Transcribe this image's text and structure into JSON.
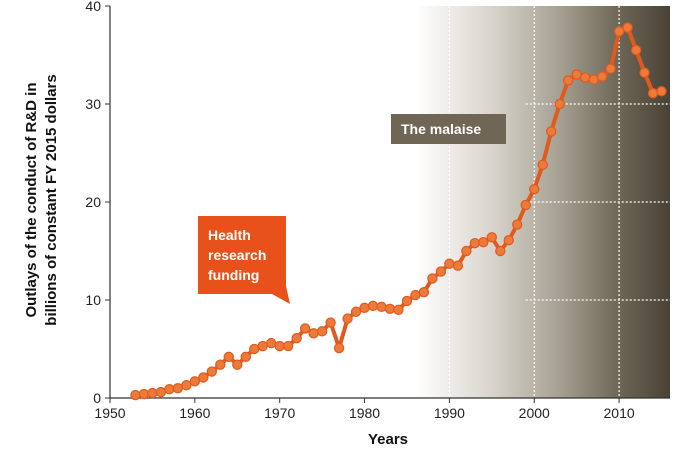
{
  "chart_data": {
    "type": "line",
    "xlabel": "Years",
    "ylabel_lines": [
      "Outlays of the conduct of R&D in",
      "billions of constant FY 2015 dollars"
    ],
    "xlim": [
      1950,
      2016
    ],
    "ylim": [
      0,
      40
    ],
    "x_ticks": [
      1950,
      1960,
      1970,
      1980,
      1990,
      2000,
      2010
    ],
    "y_ticks": [
      0,
      10,
      20,
      30,
      40
    ],
    "vertical_gridlines": [
      1990,
      2000,
      2010
    ],
    "horizontal_gridlines_shaded_region": [
      10,
      20,
      30
    ],
    "grid": "dotted white lines over shaded region",
    "shaded_region": {
      "start": 1986,
      "end": 2016,
      "color_from": "#ffffff",
      "color_to": "#4a4235"
    },
    "colors": {
      "series": "#e05a1e",
      "callout_health": "#e8521a",
      "callout_malaise": "#6f6655",
      "marker_fill": "#ec7a3a"
    },
    "series": [
      {
        "x": [
          1953,
          1954,
          1955,
          1956,
          1957,
          1958,
          1959,
          1960,
          1961,
          1962,
          1963,
          1964,
          1965,
          1966,
          1967,
          1968,
          1969,
          1970,
          1971,
          1972,
          1973,
          1974,
          1975,
          1976,
          1977,
          1978,
          1979,
          1980,
          1981,
          1982,
          1983,
          1984,
          1985,
          1986,
          1987,
          1988,
          1989,
          1990,
          1991,
          1992,
          1993,
          1994,
          1995,
          1996,
          1997,
          1998,
          1999,
          2000,
          2001,
          2002,
          2003,
          2004,
          2005,
          2006,
          2007,
          2008,
          2009,
          2010,
          2011,
          2012,
          2013,
          2014,
          2015
        ],
        "values": [
          0.3,
          0.4,
          0.5,
          0.6,
          0.9,
          1.0,
          1.3,
          1.7,
          2.1,
          2.7,
          3.4,
          4.2,
          3.4,
          4.2,
          5.0,
          5.3,
          5.6,
          5.3,
          5.3,
          6.1,
          7.1,
          6.6,
          6.8,
          7.7,
          5.1,
          8.1,
          8.8,
          9.2,
          9.4,
          9.3,
          9.1,
          9.0,
          9.9,
          10.5,
          10.8,
          12.2,
          12.9,
          13.7,
          13.5,
          15.0,
          15.8,
          15.9,
          16.4,
          15.0,
          16.1,
          17.7,
          19.7,
          21.3,
          23.8,
          27.2,
          30.0,
          32.4,
          33.0,
          32.7,
          32.5,
          32.8,
          33.6,
          37.4,
          37.8,
          35.5,
          33.2,
          31.1,
          31.3
        ]
      }
    ],
    "annotations": [
      {
        "label_lines": [
          "Health",
          "research",
          "funding"
        ]
      },
      {
        "label": "The malaise"
      }
    ]
  }
}
